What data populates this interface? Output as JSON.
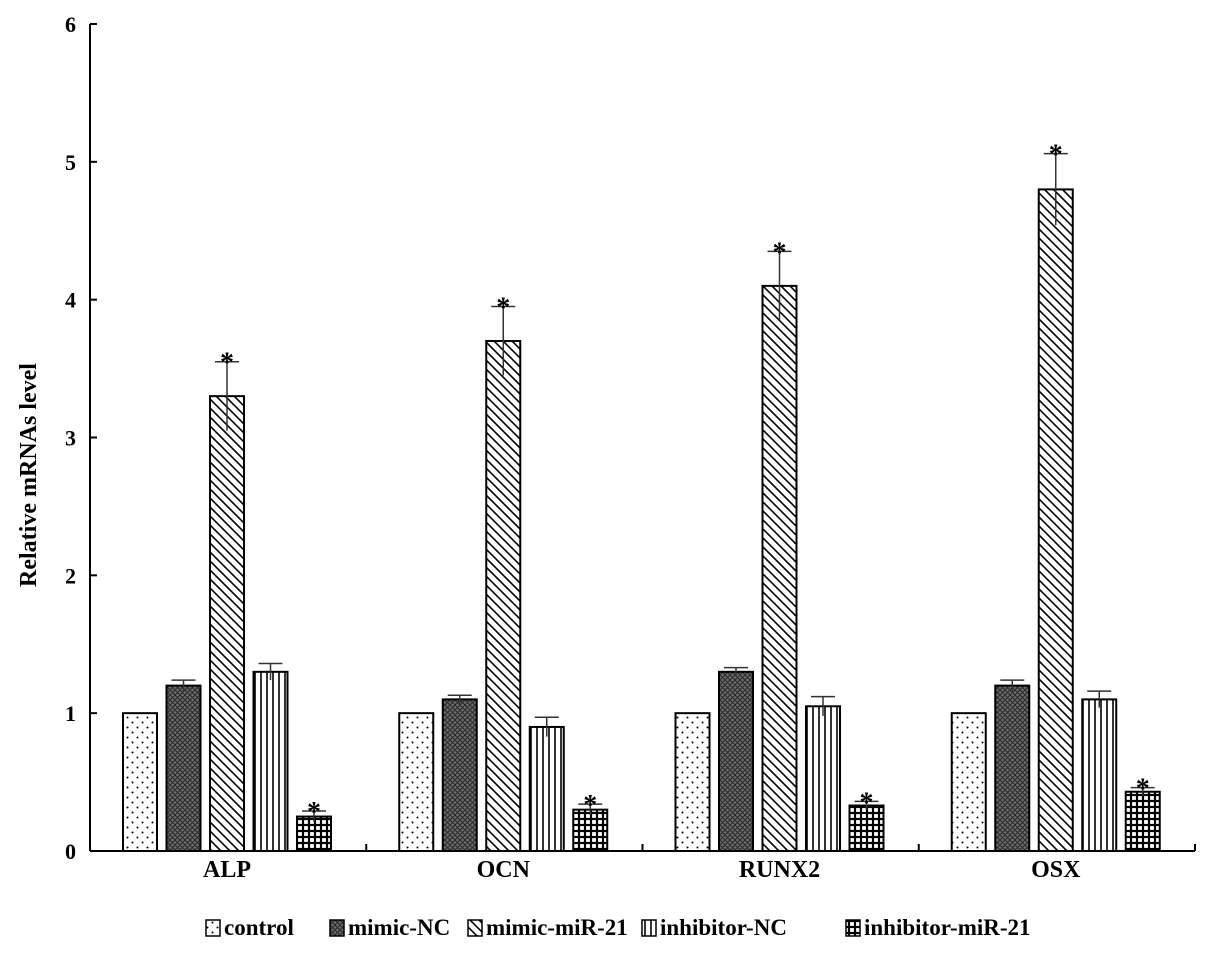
{
  "chart_data": {
    "type": "bar",
    "title": "",
    "xlabel": "",
    "ylabel": "Relative mRNAs level",
    "ylim": [
      0,
      6
    ],
    "yticks": [
      "0",
      "1",
      "2",
      "3",
      "4",
      "5",
      "6"
    ],
    "grid": false,
    "legend_position": "bottom",
    "categories": [
      "ALP",
      "OCN",
      "RUNX2",
      "OSX"
    ],
    "series": [
      {
        "name": "control",
        "pattern": "dots",
        "values": [
          1.0,
          1.0,
          1.0,
          1.0
        ],
        "errors": [
          0,
          0,
          0,
          0
        ],
        "significant": [
          false,
          false,
          false,
          false
        ]
      },
      {
        "name": "mimic-NC",
        "pattern": "dark-crosshatch",
        "values": [
          1.2,
          1.1,
          1.3,
          1.2
        ],
        "errors": [
          0.04,
          0.03,
          0.03,
          0.04
        ],
        "significant": [
          false,
          false,
          false,
          false
        ]
      },
      {
        "name": "mimic-miR-21",
        "pattern": "diagonal",
        "values": [
          3.3,
          3.7,
          4.1,
          4.8
        ],
        "errors": [
          0.25,
          0.25,
          0.25,
          0.26
        ],
        "significant": [
          true,
          true,
          true,
          true
        ]
      },
      {
        "name": "inhibitor-NC",
        "pattern": "vertical",
        "values": [
          1.3,
          0.9,
          1.05,
          1.1
        ],
        "errors": [
          0.06,
          0.07,
          0.07,
          0.06
        ],
        "significant": [
          false,
          false,
          false,
          false
        ]
      },
      {
        "name": "inhibitor-miR-21",
        "pattern": "grid",
        "values": [
          0.25,
          0.3,
          0.33,
          0.43
        ],
        "errors": [
          0.04,
          0.04,
          0.03,
          0.03
        ],
        "significant": [
          true,
          true,
          true,
          true
        ]
      }
    ],
    "significance_marker": "*"
  },
  "colors": {
    "axis": "#000000",
    "bar_outline": "#000000",
    "dark_fill": "#555555"
  }
}
